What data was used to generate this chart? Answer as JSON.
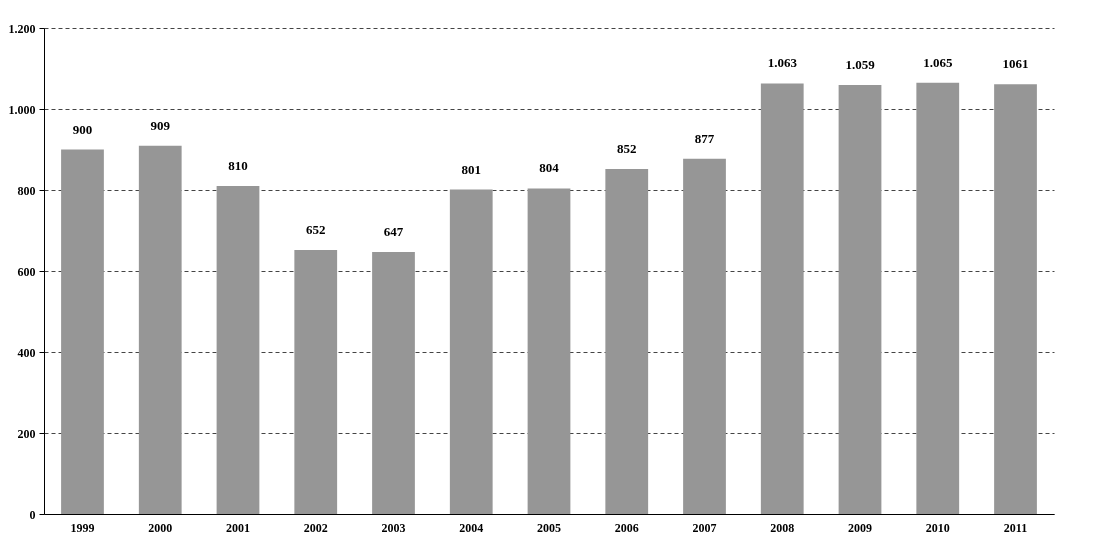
{
  "chart_data": {
    "type": "bar",
    "categories": [
      "1999",
      "2000",
      "2001",
      "2002",
      "2003",
      "2004",
      "2005",
      "2006",
      "2007",
      "2008",
      "2009",
      "2010",
      "2011"
    ],
    "values": [
      900,
      909,
      810,
      652,
      647,
      801,
      804,
      852,
      877,
      1063,
      1059,
      1065,
      1061
    ],
    "value_labels": [
      "900",
      "909",
      "810",
      "652",
      "647",
      "801",
      "804",
      "852",
      "877",
      "1.063",
      "1.059",
      "1.065",
      "1061"
    ],
    "color": "#969696",
    "ylim": [
      0,
      1200
    ],
    "yticks": [
      0,
      {
        "value": 200,
        "label": "200"
      },
      {
        "value": 400,
        "label": "400"
      },
      {
        "value": 600,
        "label": "600"
      },
      {
        "value": 800,
        "label": "800"
      },
      {
        "value": 1000,
        "label": "1.000"
      },
      {
        "value": 1200,
        "label": "1.200"
      }
    ],
    "grid": "y"
  }
}
